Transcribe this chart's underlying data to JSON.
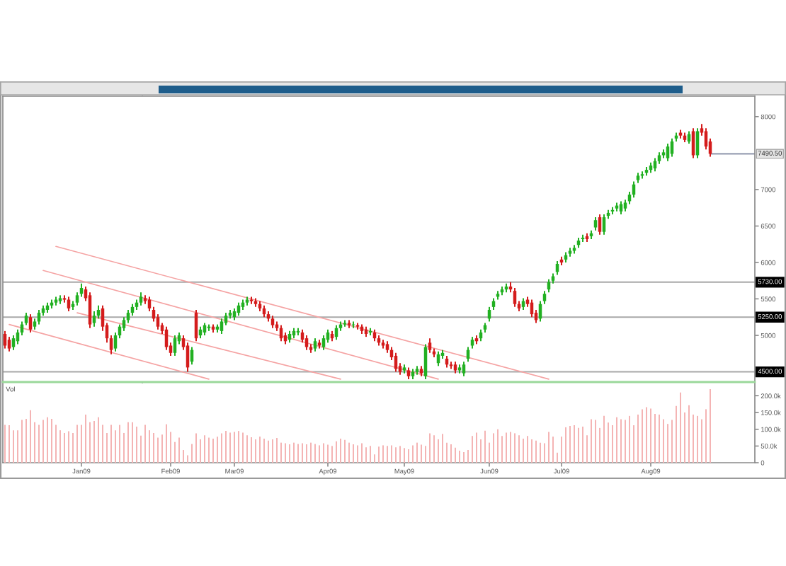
{
  "chart_data": [
    {
      "type": "candlestick",
      "categories": [
        null,
        null,
        null,
        null,
        null,
        null,
        null,
        null,
        null,
        null,
        null,
        null,
        null,
        null,
        null,
        null,
        null,
        null,
        null,
        null,
        null,
        null,
        null,
        null,
        null,
        null,
        null,
        null,
        null,
        null,
        null,
        null,
        null,
        null,
        null,
        null,
        null,
        null,
        null,
        null,
        null,
        null,
        null,
        null,
        null,
        null,
        null,
        null,
        null,
        null,
        null,
        null,
        null,
        null,
        null,
        null,
        null,
        null,
        null,
        null,
        null,
        null,
        null,
        null,
        null,
        null,
        null,
        null,
        null,
        null,
        null,
        null,
        null,
        null,
        null,
        null,
        null,
        null,
        null,
        null,
        null,
        null,
        null,
        null,
        null,
        null,
        null,
        null,
        null,
        null,
        null,
        null,
        null,
        null,
        null,
        null,
        null,
        null,
        null,
        null,
        null,
        null,
        null,
        null,
        null,
        null,
        null,
        null,
        null,
        null,
        null,
        null,
        null,
        null,
        null,
        null,
        null,
        null,
        null,
        null,
        null,
        null,
        null,
        null,
        null,
        null,
        null,
        null,
        null,
        null,
        null,
        null,
        null,
        null,
        null,
        null,
        null,
        null,
        null,
        null,
        null,
        null,
        null,
        null,
        null,
        null,
        null,
        null,
        null,
        null,
        null,
        null,
        null,
        null,
        null,
        null,
        null,
        null,
        null,
        null,
        null,
        null,
        null,
        null,
        null,
        null,
        null,
        null,
        null,
        null,
        null,
        null,
        null,
        null,
        null,
        null,
        null
      ],
      "ohlc": [
        [
          5020,
          5060,
          4820,
          4860
        ],
        [
          4940,
          4980,
          4780,
          4820
        ],
        [
          4840,
          5000,
          4800,
          4960
        ],
        [
          4920,
          5080,
          4880,
          5040
        ],
        [
          5040,
          5190,
          5000,
          5150
        ],
        [
          5170,
          5310,
          5140,
          5270
        ],
        [
          5250,
          5290,
          5040,
          5080
        ],
        [
          5120,
          5230,
          5080,
          5190
        ],
        [
          5190,
          5350,
          5150,
          5310
        ],
        [
          5310,
          5410,
          5270,
          5370
        ],
        [
          5350,
          5450,
          5310,
          5410
        ],
        [
          5410,
          5490,
          5370,
          5450
        ],
        [
          5450,
          5530,
          5410,
          5490
        ],
        [
          5470,
          5550,
          5430,
          5510
        ],
        [
          5510,
          5550,
          5450,
          5490
        ],
        [
          5490,
          5530,
          5330,
          5370
        ],
        [
          5390,
          5470,
          5350,
          5430
        ],
        [
          5450,
          5590,
          5410,
          5550
        ],
        [
          5570,
          5710,
          5530,
          5650
        ],
        [
          5630,
          5670,
          5470,
          5510
        ],
        [
          5550,
          5590,
          5100,
          5150
        ],
        [
          5170,
          5330,
          5120,
          5270
        ],
        [
          5270,
          5410,
          5230,
          5350
        ],
        [
          5370,
          5410,
          5060,
          5120
        ],
        [
          5140,
          5170,
          4900,
          4960
        ],
        [
          4960,
          5000,
          4740,
          4800
        ],
        [
          4820,
          5040,
          4780,
          5000
        ],
        [
          5000,
          5150,
          4960,
          5120
        ],
        [
          5100,
          5250,
          5060,
          5210
        ],
        [
          5210,
          5350,
          5170,
          5310
        ],
        [
          5310,
          5430,
          5270,
          5390
        ],
        [
          5390,
          5490,
          5350,
          5450
        ],
        [
          5450,
          5590,
          5410,
          5530
        ],
        [
          5510,
          5550,
          5430,
          5470
        ],
        [
          5490,
          5530,
          5330,
          5370
        ],
        [
          5350,
          5390,
          5190,
          5230
        ],
        [
          5250,
          5290,
          5080,
          5120
        ],
        [
          5140,
          5170,
          5020,
          5060
        ],
        [
          5080,
          5120,
          4800,
          4840
        ],
        [
          4860,
          4900,
          4720,
          4760
        ],
        [
          4760,
          5000,
          4720,
          4960
        ],
        [
          4920,
          5040,
          4880,
          5000
        ],
        [
          4960,
          5000,
          4800,
          4840
        ],
        [
          4860,
          4900,
          4500,
          4560
        ],
        [
          4640,
          4840,
          4600,
          4800
        ],
        [
          5310,
          5350,
          4920,
          4960
        ],
        [
          5000,
          5120,
          4960,
          5080
        ],
        [
          5040,
          5170,
          5000,
          5140
        ],
        [
          5100,
          5150,
          5060,
          5120
        ],
        [
          5120,
          5150,
          5040,
          5080
        ],
        [
          5080,
          5150,
          5040,
          5120
        ],
        [
          5060,
          5230,
          5020,
          5190
        ],
        [
          5170,
          5310,
          5140,
          5270
        ],
        [
          5270,
          5350,
          5230,
          5310
        ],
        [
          5250,
          5370,
          5210,
          5330
        ],
        [
          5310,
          5450,
          5270,
          5410
        ],
        [
          5390,
          5490,
          5350,
          5450
        ],
        [
          5450,
          5530,
          5410,
          5490
        ],
        [
          5490,
          5530,
          5430,
          5470
        ],
        [
          5470,
          5510,
          5390,
          5430
        ],
        [
          5430,
          5470,
          5330,
          5370
        ],
        [
          5370,
          5410,
          5250,
          5290
        ],
        [
          5290,
          5330,
          5190,
          5230
        ],
        [
          5230,
          5270,
          5100,
          5140
        ],
        [
          5150,
          5190,
          5060,
          5100
        ],
        [
          5100,
          5140,
          4920,
          4960
        ],
        [
          5000,
          5040,
          4880,
          4920
        ],
        [
          4940,
          5060,
          4900,
          5020
        ],
        [
          5000,
          5100,
          4960,
          5060
        ],
        [
          5040,
          5100,
          5000,
          5060
        ],
        [
          5040,
          5080,
          4900,
          4940
        ],
        [
          4960,
          5000,
          4800,
          4840
        ],
        [
          4840,
          4880,
          4760,
          4800
        ],
        [
          4820,
          4960,
          4780,
          4920
        ],
        [
          4900,
          4940,
          4820,
          4860
        ],
        [
          4840,
          5000,
          4800,
          4960
        ],
        [
          4940,
          5080,
          4900,
          5040
        ],
        [
          5020,
          5060,
          4920,
          4960
        ],
        [
          4980,
          5140,
          4940,
          5100
        ],
        [
          5100,
          5190,
          5060,
          5150
        ],
        [
          5150,
          5210,
          5120,
          5170
        ],
        [
          5170,
          5210,
          5100,
          5140
        ],
        [
          5140,
          5190,
          5100,
          5150
        ],
        [
          5140,
          5170,
          5080,
          5120
        ],
        [
          5120,
          5150,
          5020,
          5060
        ],
        [
          5080,
          5120,
          4980,
          5020
        ],
        [
          5040,
          5100,
          5000,
          5060
        ],
        [
          5040,
          5080,
          4920,
          4960
        ],
        [
          4960,
          5000,
          4860,
          4900
        ],
        [
          4900,
          4940,
          4820,
          4860
        ],
        [
          4880,
          4920,
          4760,
          4800
        ],
        [
          4800,
          4840,
          4660,
          4700
        ],
        [
          4720,
          4760,
          4500,
          4540
        ],
        [
          4580,
          4620,
          4460,
          4500
        ],
        [
          4520,
          4600,
          4480,
          4560
        ],
        [
          4520,
          4560,
          4400,
          4440
        ],
        [
          4440,
          4540,
          4400,
          4500
        ],
        [
          4500,
          4580,
          4460,
          4540
        ],
        [
          4540,
          4580,
          4440,
          4480
        ],
        [
          4440,
          4880,
          4400,
          4840
        ],
        [
          4900,
          4960,
          4760,
          4800
        ],
        [
          4780,
          4820,
          4700,
          4740
        ],
        [
          4620,
          4780,
          4580,
          4740
        ],
        [
          4720,
          4800,
          4680,
          4760
        ],
        [
          4680,
          4720,
          4560,
          4600
        ],
        [
          4600,
          4640,
          4540,
          4580
        ],
        [
          4600,
          4640,
          4480,
          4520
        ],
        [
          4520,
          4600,
          4480,
          4560
        ],
        [
          4480,
          4640,
          4440,
          4600
        ],
        [
          4680,
          4840,
          4640,
          4800
        ],
        [
          4860,
          4980,
          4820,
          4940
        ],
        [
          4960,
          5000,
          4880,
          4920
        ],
        [
          4960,
          5080,
          4920,
          5040
        ],
        [
          5080,
          5170,
          5040,
          5140
        ],
        [
          5230,
          5390,
          5190,
          5350
        ],
        [
          5390,
          5510,
          5350,
          5470
        ],
        [
          5530,
          5610,
          5490,
          5570
        ],
        [
          5590,
          5670,
          5550,
          5630
        ],
        [
          5630,
          5710,
          5590,
          5670
        ],
        [
          5670,
          5730,
          5590,
          5630
        ],
        [
          5610,
          5650,
          5390,
          5430
        ],
        [
          5430,
          5470,
          5330,
          5370
        ],
        [
          5390,
          5510,
          5350,
          5470
        ],
        [
          5490,
          5530,
          5390,
          5430
        ],
        [
          5450,
          5490,
          5250,
          5290
        ],
        [
          5310,
          5350,
          5170,
          5210
        ],
        [
          5230,
          5470,
          5190,
          5430
        ],
        [
          5470,
          5610,
          5430,
          5570
        ],
        [
          5630,
          5770,
          5590,
          5730
        ],
        [
          5750,
          5850,
          5710,
          5810
        ],
        [
          5870,
          6020,
          5830,
          5980
        ],
        [
          6040,
          6080,
          5960,
          6000
        ],
        [
          6040,
          6140,
          6000,
          6100
        ],
        [
          6120,
          6200,
          6080,
          6160
        ],
        [
          6160,
          6240,
          6120,
          6200
        ],
        [
          6240,
          6340,
          6200,
          6300
        ],
        [
          6320,
          6380,
          6280,
          6340
        ],
        [
          6360,
          6400,
          6280,
          6320
        ],
        [
          6360,
          6440,
          6320,
          6400
        ],
        [
          6480,
          6620,
          6440,
          6580
        ],
        [
          6620,
          6660,
          6380,
          6420
        ],
        [
          6420,
          6660,
          6380,
          6620
        ],
        [
          6640,
          6720,
          6600,
          6680
        ],
        [
          6700,
          6760,
          6660,
          6720
        ],
        [
          6740,
          6820,
          6700,
          6780
        ],
        [
          6700,
          6840,
          6660,
          6800
        ],
        [
          6740,
          6860,
          6700,
          6820
        ],
        [
          6840,
          6970,
          6800,
          6930
        ],
        [
          6930,
          7110,
          6890,
          7070
        ],
        [
          7130,
          7230,
          7090,
          7190
        ],
        [
          7190,
          7250,
          7150,
          7210
        ],
        [
          7230,
          7310,
          7190,
          7270
        ],
        [
          7270,
          7370,
          7230,
          7330
        ],
        [
          7290,
          7430,
          7250,
          7390
        ],
        [
          7390,
          7510,
          7350,
          7470
        ],
        [
          7470,
          7550,
          7430,
          7510
        ],
        [
          7430,
          7630,
          7390,
          7590
        ],
        [
          7490,
          7700,
          7450,
          7660
        ],
        [
          7700,
          7780,
          7660,
          7740
        ],
        [
          7780,
          7820,
          7700,
          7740
        ],
        [
          7740,
          7780,
          7650,
          7680
        ],
        [
          7660,
          7800,
          7630,
          7760
        ],
        [
          7800,
          7840,
          7430,
          7470
        ],
        [
          7470,
          7840,
          7430,
          7800
        ],
        [
          7840,
          7900,
          7740,
          7780
        ],
        [
          7800,
          7840,
          7550,
          7590
        ],
        [
          7660,
          7700,
          7450,
          7490
        ],
        null,
        null,
        null,
        null,
        null,
        null,
        null,
        null,
        null,
        null
      ],
      "colors": [
        "#d41c1c",
        "#d41c1c",
        "#22b022",
        "#22b022",
        "#22b022",
        "#22b022",
        "#d41c1c",
        "#22b022",
        "#22b022",
        "#22b022",
        "#22b022",
        "#22b022",
        "#22b022",
        "#22b022",
        "#d41c1c",
        "#d41c1c",
        "#22b022",
        "#22b022",
        "#22b022",
        "#d41c1c",
        "#d41c1c",
        "#22b022",
        "#22b022",
        "#d41c1c",
        "#d41c1c",
        "#d41c1c",
        "#22b022",
        "#22b022",
        "#22b022",
        "#22b022",
        "#22b022",
        "#22b022",
        "#22b022",
        "#d41c1c",
        "#d41c1c",
        "#d41c1c",
        "#d41c1c",
        "#d41c1c",
        "#d41c1c",
        "#d41c1c",
        "#22b022",
        "#22b022",
        "#d41c1c",
        "#d41c1c",
        "#22b022",
        "#d41c1c",
        "#22b022",
        "#22b022",
        "#22b022",
        "#d41c1c",
        "#22b022",
        "#22b022",
        "#22b022",
        "#22b022",
        "#22b022",
        "#22b022",
        "#22b022",
        "#22b022",
        "#d41c1c",
        "#d41c1c",
        "#d41c1c",
        "#d41c1c",
        "#d41c1c",
        "#d41c1c",
        "#d41c1c",
        "#d41c1c",
        "#d41c1c",
        "#22b022",
        "#22b022",
        "#22b022",
        "#d41c1c",
        "#d41c1c",
        "#d41c1c",
        "#22b022",
        "#d41c1c",
        "#22b022",
        "#22b022",
        "#d41c1c",
        "#22b022",
        "#22b022",
        "#22b022",
        "#d41c1c",
        "#22b022",
        "#d41c1c",
        "#d41c1c",
        "#d41c1c",
        "#22b022",
        "#d41c1c",
        "#d41c1c",
        "#d41c1c",
        "#d41c1c",
        "#d41c1c",
        "#d41c1c",
        "#d41c1c",
        "#22b022",
        "#d41c1c",
        "#22b022",
        "#22b022",
        "#d41c1c",
        "#22b022",
        "#d41c1c",
        "#d41c1c",
        "#22b022",
        "#22b022",
        "#d41c1c",
        "#d41c1c",
        "#d41c1c",
        "#22b022",
        "#22b022",
        "#22b022",
        "#22b022",
        "#d41c1c",
        "#22b022",
        "#22b022",
        "#22b022",
        "#22b022",
        "#22b022",
        "#22b022",
        "#22b022",
        "#d41c1c",
        "#d41c1c",
        "#d41c1c",
        "#22b022",
        "#d41c1c",
        "#d41c1c",
        "#d41c1c",
        "#22b022",
        "#22b022",
        "#22b022",
        "#22b022",
        "#22b022",
        "#d41c1c",
        "#22b022",
        "#22b022",
        "#22b022",
        "#22b022",
        "#22b022",
        "#d41c1c",
        "#22b022",
        "#22b022",
        "#d41c1c",
        "#22b022",
        "#22b022",
        "#22b022",
        "#22b022",
        "#22b022",
        "#22b022",
        "#22b022",
        "#22b022",
        "#22b022",
        "#22b022",
        "#22b022",
        "#22b022",
        "#22b022",
        "#22b022",
        "#22b022",
        "#22b022",
        "#22b022",
        "#22b022",
        "#d41c1c",
        "#d41c1c",
        "#22b022",
        "#d41c1c",
        "#22b022",
        "#d41c1c",
        "#d41c1c",
        "#d41c1c",
        null,
        null,
        null,
        null,
        null,
        null,
        null,
        null,
        null,
        null
      ],
      "series": [
        {
          "type": "line",
          "color": "#f5a3a3",
          "values": [
            null,
            null,
            null,
            null,
            null,
            null,
            null,
            null,
            null,
            null,
            null,
            null,
            6220,
            null,
            null,
            null,
            null,
            null,
            null,
            null,
            null,
            null,
            null,
            null,
            null,
            null,
            null,
            null,
            null,
            null,
            null,
            null,
            null,
            null,
            null,
            null,
            null,
            null,
            null,
            null,
            null,
            null,
            null,
            null,
            null,
            null,
            null,
            null,
            null,
            null,
            null,
            null,
            null,
            null,
            null,
            null,
            null,
            null,
            null,
            null,
            null,
            null,
            null,
            null,
            null,
            null,
            null,
            null,
            null,
            null,
            null,
            null,
            null,
            null,
            null,
            null,
            null,
            null,
            null,
            null,
            null,
            null,
            null,
            null,
            null,
            null,
            null,
            null,
            null,
            null,
            null,
            null,
            null,
            null,
            null,
            null,
            null,
            null,
            null,
            null,
            null,
            null,
            null,
            null,
            null,
            null,
            null,
            null,
            null,
            null,
            null,
            null,
            null,
            null,
            null,
            null,
            null,
            null,
            null,
            null,
            null,
            null,
            null,
            null,
            null,
            null,
            null,
            null,
            4400,
            null,
            null,
            null,
            null,
            null,
            null,
            null,
            null,
            null,
            null,
            null,
            null,
            null,
            null,
            null,
            null,
            null,
            null,
            null,
            null,
            null,
            null,
            null,
            null,
            null,
            null,
            null,
            null,
            null,
            null,
            null,
            null,
            null,
            null,
            null,
            null,
            null,
            null,
            null,
            null,
            null,
            null,
            null,
            null,
            null,
            null,
            null,
            null
          ]
        },
        {
          "type": "line",
          "color": "#f5a3a3",
          "values": [
            null,
            null,
            null,
            null,
            null,
            null,
            null,
            null,
            null,
            5890,
            null,
            null,
            null,
            null,
            null,
            null,
            null,
            null,
            null,
            null,
            null,
            null,
            null,
            null,
            null,
            null,
            null,
            null,
            null,
            null,
            null,
            null,
            null,
            null,
            null,
            null,
            null,
            null,
            null,
            null,
            null,
            null,
            null,
            null,
            null,
            null,
            null,
            null,
            null,
            null,
            null,
            null,
            null,
            null,
            null,
            null,
            null,
            null,
            null,
            null,
            null,
            null,
            null,
            null,
            null,
            null,
            null,
            null,
            null,
            null,
            null,
            null,
            null,
            null,
            null,
            null,
            null,
            null,
            null,
            null,
            null,
            null,
            null,
            null,
            null,
            null,
            null,
            null,
            null,
            null,
            null,
            null,
            null,
            null,
            null,
            null,
            null,
            null,
            null,
            null,
            null,
            null,
            4400,
            null,
            null,
            null,
            null,
            null,
            null,
            null,
            null,
            null,
            null,
            null,
            null,
            null,
            null,
            null,
            null,
            null,
            null,
            null,
            null,
            null,
            null,
            null,
            null,
            null,
            null,
            null,
            null,
            null,
            null,
            null,
            null,
            null,
            null,
            null,
            null,
            null,
            null,
            null,
            null,
            null,
            null,
            null,
            null,
            null,
            null,
            null,
            null,
            null,
            null,
            null,
            null,
            null,
            null,
            null,
            null,
            null,
            null,
            null,
            null,
            null,
            null,
            null,
            null,
            null,
            null,
            null,
            null,
            null,
            null,
            null,
            null,
            null,
            null
          ]
        },
        {
          "type": "line",
          "color": "#f5a3a3",
          "values": [
            null,
            null,
            null,
            null,
            null,
            null,
            null,
            null,
            null,
            null,
            null,
            null,
            null,
            null,
            null,
            null,
            null,
            5310,
            null,
            null,
            null,
            null,
            null,
            null,
            null,
            null,
            null,
            null,
            null,
            null,
            null,
            null,
            null,
            null,
            null,
            null,
            null,
            null,
            null,
            null,
            null,
            null,
            null,
            null,
            null,
            null,
            null,
            null,
            null,
            null,
            null,
            null,
            null,
            null,
            null,
            null,
            null,
            null,
            null,
            null,
            null,
            null,
            null,
            null,
            null,
            null,
            null,
            null,
            null,
            null,
            null,
            null,
            null,
            null,
            null,
            null,
            null,
            null,
            null,
            4400,
            null,
            null,
            null,
            null,
            null,
            null,
            null,
            null,
            null,
            null,
            null,
            null,
            null,
            null,
            null,
            null,
            null,
            null,
            null,
            null,
            null,
            null,
            null,
            null,
            null,
            null,
            null,
            null,
            null,
            null,
            null,
            null,
            null,
            null,
            null,
            null,
            null,
            null,
            null,
            null,
            null,
            null,
            null,
            null,
            null,
            null,
            null,
            null,
            null,
            null,
            null,
            null,
            null,
            null,
            null,
            null,
            null,
            null,
            null,
            null,
            null,
            null,
            null,
            null,
            null,
            null,
            null,
            null,
            null,
            null,
            null,
            null,
            null,
            null,
            null,
            null,
            null,
            null,
            null,
            null,
            null,
            null,
            null,
            null,
            null,
            null,
            null,
            null,
            null,
            null,
            null,
            null,
            null,
            null,
            null,
            null,
            null
          ]
        },
        {
          "type": "line",
          "color": "#f5a3a3",
          "values": [
            null,
            5150,
            null,
            null,
            null,
            null,
            null,
            null,
            null,
            null,
            null,
            null,
            null,
            null,
            null,
            null,
            null,
            null,
            null,
            null,
            null,
            null,
            null,
            null,
            null,
            null,
            null,
            null,
            null,
            null,
            null,
            null,
            null,
            null,
            null,
            null,
            null,
            null,
            null,
            null,
            null,
            null,
            null,
            null,
            null,
            null,
            null,
            null,
            4400,
            null,
            null,
            null,
            null,
            null,
            null,
            null,
            null,
            null,
            null,
            null,
            null,
            null,
            null,
            null,
            null,
            null,
            null,
            null,
            null,
            null,
            null,
            null,
            null,
            null,
            null,
            null,
            null,
            null,
            null,
            null,
            null,
            null,
            null,
            null,
            null,
            null,
            null,
            null,
            null,
            null,
            null,
            null,
            null,
            null,
            null,
            null,
            null,
            null,
            null,
            null,
            null,
            null,
            null,
            null,
            null,
            null,
            null,
            null,
            null,
            null,
            null,
            null,
            null,
            null,
            null,
            null,
            null,
            null,
            null,
            null,
            null,
            null,
            null,
            null,
            null,
            null,
            null,
            null,
            null,
            null,
            null,
            null,
            null,
            null,
            null,
            null,
            null,
            null,
            null,
            null,
            null,
            null,
            null,
            null,
            null,
            null,
            null,
            null,
            null,
            null,
            null,
            null,
            null,
            null,
            null,
            null,
            null,
            null,
            null,
            null,
            null,
            null,
            null,
            null,
            null,
            null,
            null,
            null,
            null,
            null,
            null,
            null,
            null,
            null,
            null,
            null,
            null
          ]
        }
      ],
      "ylim": [
        4360,
        8280
      ],
      "yticks": [
        5000,
        5500,
        6000,
        6500,
        7000,
        8000
      ],
      "tick_labels": "y",
      "grid": false,
      "ref_lines": [
        {
          "axis": "y",
          "value": 5730,
          "label": "5730.00",
          "color": "#a8a8a8"
        },
        {
          "axis": "y",
          "value": 5250,
          "label": "5250.00",
          "color": "#a8a8a8"
        },
        {
          "axis": "y",
          "value": 4500,
          "label": "4500.00",
          "color": "#a8a8a8"
        }
      ],
      "annotations": [
        {
          "text": "7490.50",
          "y": 7490
        }
      ]
    },
    {
      "type": "bar",
      "categories": [
        null,
        null,
        null,
        null,
        null,
        null,
        null,
        null,
        null,
        null,
        null,
        null,
        null,
        null,
        null,
        null,
        null,
        null,
        "Jan09",
        null,
        null,
        null,
        null,
        null,
        null,
        null,
        null,
        null,
        null,
        null,
        null,
        null,
        null,
        null,
        null,
        null,
        null,
        null,
        null,
        "Feb09",
        null,
        null,
        null,
        null,
        null,
        null,
        null,
        null,
        null,
        null,
        null,
        null,
        null,
        null,
        "Mar09",
        null,
        null,
        null,
        null,
        null,
        null,
        null,
        null,
        null,
        null,
        null,
        null,
        null,
        null,
        null,
        null,
        null,
        null,
        null,
        null,
        null,
        "Apr09",
        null,
        null,
        null,
        null,
        null,
        null,
        null,
        null,
        null,
        null,
        null,
        null,
        null,
        null,
        null,
        null,
        null,
        "May09",
        null,
        null,
        null,
        null,
        null,
        null,
        null,
        null,
        null,
        null,
        null,
        null,
        null,
        null,
        null,
        null,
        null,
        null,
        null,
        "Jun09",
        null,
        null,
        null,
        null,
        null,
        null,
        null,
        null,
        null,
        null,
        null,
        null,
        null,
        null,
        null,
        null,
        "Jul09",
        null,
        null,
        null,
        null,
        null,
        null,
        null,
        null,
        null,
        null,
        null,
        null,
        null,
        null,
        null,
        null,
        null,
        null,
        null,
        null,
        "Aug09",
        null,
        null,
        null,
        null,
        null,
        null,
        null,
        null,
        null,
        null,
        null,
        null,
        null,
        null,
        null,
        null,
        null,
        null,
        null,
        null,
        null,
        null,
        null,
        null
      ],
      "values": [
        113,
        112,
        97,
        97,
        128,
        131,
        157,
        121,
        113,
        128,
        136,
        131,
        113,
        97,
        89,
        94,
        89,
        113,
        113,
        144,
        121,
        125,
        136,
        113,
        89,
        113,
        97,
        113,
        89,
        121,
        121,
        108,
        81,
        113,
        97,
        89,
        75,
        84,
        115,
        92,
        62,
        75,
        38,
        22,
        56,
        88,
        70,
        82,
        75,
        72,
        78,
        88,
        95,
        90,
        92,
        95,
        90,
        82,
        76,
        70,
        78,
        72,
        66,
        70,
        74,
        60,
        58,
        55,
        60,
        56,
        58,
        55,
        60,
        56,
        52,
        58,
        54,
        50,
        64,
        72,
        68,
        60,
        55,
        52,
        58,
        46,
        50,
        25,
        48,
        52,
        50,
        52,
        46,
        50,
        44,
        40,
        52,
        60,
        54,
        50,
        88,
        82,
        70,
        86,
        60,
        55,
        45,
        36,
        32,
        38,
        80,
        90,
        70,
        96,
        60,
        88,
        100,
        80,
        90,
        92,
        88,
        82,
        72,
        80,
        70,
        66,
        60,
        58,
        92,
        78,
        30,
        78,
        106,
        110,
        112,
        104,
        108,
        82,
        130,
        128,
        104,
        140,
        120,
        112,
        136,
        130,
        128,
        140,
        112,
        144,
        160,
        166,
        162,
        146,
        144,
        130,
        116,
        128,
        170,
        210,
        150,
        172,
        144,
        140,
        130,
        160,
        220,
        null,
        null,
        null,
        null,
        null,
        null,
        null,
        null,
        null,
        null
      ],
      "color": "#f4b4b4",
      "ylim": [
        0,
        237
      ],
      "yticks": [
        0,
        {
          "value": 50,
          "label": "50.0k"
        },
        {
          "value": 100,
          "label": "100.0k"
        },
        {
          "value": 150,
          "label": "150.0k"
        },
        {
          "value": 200,
          "label": "200.0k"
        }
      ],
      "grid": false,
      "annotations": [
        "Vol"
      ]
    }
  ]
}
